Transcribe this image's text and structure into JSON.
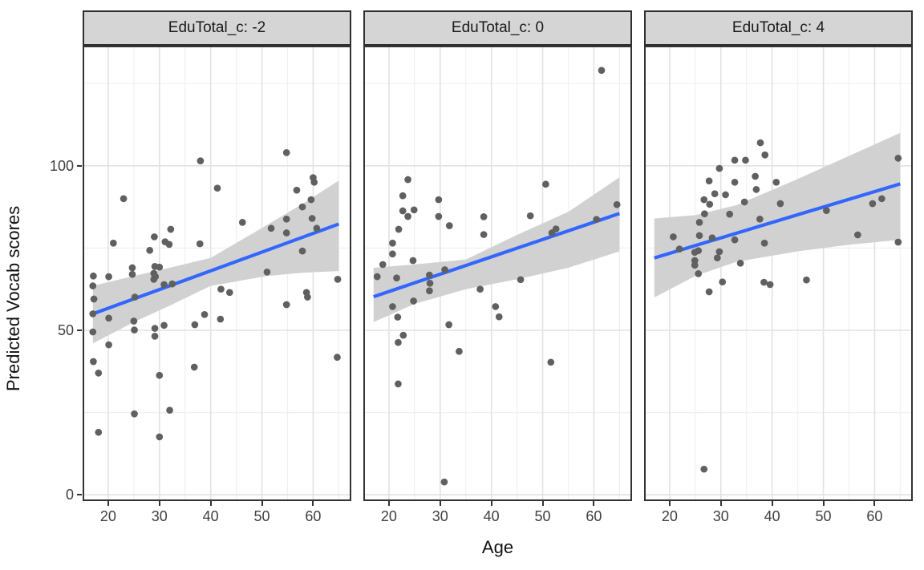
{
  "chart_data": {
    "type": "scatter",
    "title": "",
    "xlabel": "Age",
    "ylabel": "Predicted Vocab scores",
    "legend": "none",
    "grid": true,
    "xlim": [
      15,
      67.45
    ],
    "ylim": [
      -1.9,
      136.5
    ],
    "x_ticks": [
      20,
      30,
      40,
      50,
      60
    ],
    "x_minor_ticks": [
      15,
      25,
      35,
      45,
      55,
      65
    ],
    "y_ticks": [
      0,
      50,
      100
    ],
    "y_minor_ticks": [
      25,
      75,
      125
    ],
    "colors": {
      "line": "#3366FF",
      "point": "#606060",
      "ribbon": "#d1d1d1",
      "strip_bg": "#d5d5d5",
      "grid_major": "#e2e2e2",
      "grid_minor": "#f0f0f0",
      "panel_border": "#333333",
      "tick_text": "#404040",
      "title_text": "#111111"
    },
    "facets": [
      {
        "label": "EduTotal_c: -2",
        "points": [
          [
            17.1,
            66.5
          ],
          [
            17,
            63.5
          ],
          [
            17.2,
            59.5
          ],
          [
            17,
            55
          ],
          [
            17,
            49.5
          ],
          [
            17.1,
            40.5
          ],
          [
            18.1,
            37
          ],
          [
            18.1,
            19
          ],
          [
            20.1,
            66.3
          ],
          [
            20.1,
            53.7
          ],
          [
            20.1,
            45.6
          ],
          [
            21,
            76.5
          ],
          [
            23,
            90
          ],
          [
            24.7,
            69
          ],
          [
            24.7,
            67
          ],
          [
            25.2,
            60.1
          ],
          [
            25,
            52.8
          ],
          [
            25.1,
            50.1
          ],
          [
            25.1,
            24.6
          ],
          [
            28.1,
            74.3
          ],
          [
            29,
            78.4
          ],
          [
            29.1,
            69.4
          ],
          [
            30,
            69.2
          ],
          [
            28.9,
            67.3
          ],
          [
            29.2,
            66.3
          ],
          [
            28.9,
            65.5
          ],
          [
            29.1,
            50.6
          ],
          [
            29.1,
            48.2
          ],
          [
            30.9,
            51.5
          ],
          [
            30,
            36.3
          ],
          [
            30,
            17.6
          ],
          [
            30.9,
            63.9
          ],
          [
            32.5,
            64.1
          ],
          [
            31.1,
            76.9
          ],
          [
            31.9,
            76.1
          ],
          [
            32.2,
            80.7
          ],
          [
            32,
            25.7
          ],
          [
            36.9,
            51.7
          ],
          [
            36.8,
            38.8
          ],
          [
            37.9,
            76.3
          ],
          [
            38,
            101.5
          ],
          [
            38.8,
            54.8
          ],
          [
            41.9,
            53.4
          ],
          [
            41.3,
            93.2
          ],
          [
            42,
            62.5
          ],
          [
            43.7,
            61.5
          ],
          [
            46.2,
            82.8
          ],
          [
            51,
            67.7
          ],
          [
            51.8,
            81
          ],
          [
            54.8,
            104
          ],
          [
            54.8,
            83.8
          ],
          [
            54.8,
            79.6
          ],
          [
            54.8,
            57.8
          ],
          [
            56.8,
            92.6
          ],
          [
            57.9,
            87.5
          ],
          [
            57.9,
            74.1
          ],
          [
            58.7,
            61.5
          ],
          [
            58.9,
            60.1
          ],
          [
            59.6,
            89.7
          ],
          [
            59.8,
            84
          ],
          [
            60,
            96.4
          ],
          [
            60.2,
            95
          ],
          [
            60.7,
            81
          ],
          [
            64.8,
            65.5
          ],
          [
            64.7,
            41.8
          ]
        ],
        "line": {
          "x": [
            17,
            65
          ],
          "y": [
            55,
            82.3
          ]
        },
        "ribbon": {
          "x": [
            17,
            25,
            32,
            40,
            51,
            58,
            65
          ],
          "upper": [
            63.5,
            66.5,
            69,
            72,
            82,
            88.5,
            95.5
          ],
          "lower": [
            46,
            52.5,
            57.5,
            63.5,
            66.5,
            67.5,
            68
          ]
        }
      },
      {
        "label": "EduTotal_c: 0",
        "points": [
          [
            61.5,
            129
          ],
          [
            23.7,
            95.8
          ],
          [
            50.6,
            94.4
          ],
          [
            22.7,
            90.9
          ],
          [
            29.7,
            89.7
          ],
          [
            22.7,
            86.3
          ],
          [
            24.9,
            86.6
          ],
          [
            23.7,
            84.6
          ],
          [
            29.7,
            84.6
          ],
          [
            38.5,
            84.5
          ],
          [
            31.8,
            81.8
          ],
          [
            47.6,
            84.8
          ],
          [
            21.9,
            80.7
          ],
          [
            20.7,
            76.5
          ],
          [
            38.5,
            79.1
          ],
          [
            52.6,
            80.8
          ],
          [
            51.8,
            79.6
          ],
          [
            60.5,
            83.7
          ],
          [
            64.5,
            88.2
          ],
          [
            20.7,
            73.2
          ],
          [
            18.8,
            70
          ],
          [
            24.7,
            71.2
          ],
          [
            30.9,
            68.4
          ],
          [
            17.7,
            66.3
          ],
          [
            21.5,
            65.9
          ],
          [
            27.9,
            66.8
          ],
          [
            28,
            64.3
          ],
          [
            27.9,
            62
          ],
          [
            20.7,
            57.2
          ],
          [
            21.7,
            54
          ],
          [
            24.8,
            58.9
          ],
          [
            37.8,
            62.5
          ],
          [
            45.7,
            65.4
          ],
          [
            40.8,
            57.2
          ],
          [
            41.5,
            54.1
          ],
          [
            31.7,
            51.7
          ],
          [
            22.8,
            48.5
          ],
          [
            21.8,
            46.3
          ],
          [
            33.7,
            43.6
          ],
          [
            51.6,
            40.3
          ],
          [
            21.8,
            33.7
          ],
          [
            30.8,
            3.9
          ]
        ],
        "line": {
          "x": [
            17,
            65
          ],
          "y": [
            60.2,
            85.5
          ]
        },
        "ribbon": {
          "x": [
            17,
            25,
            35,
            45,
            55,
            65
          ],
          "upper": [
            69,
            70,
            71.5,
            79,
            86,
            96.5
          ],
          "lower": [
            52.5,
            58,
            62.5,
            65.5,
            69,
            74
          ]
        }
      },
      {
        "label": "EduTotal_c: 4",
        "points": [
          [
            37.7,
            107
          ],
          [
            38.6,
            103.3
          ],
          [
            32.7,
            101.7
          ],
          [
            34.8,
            101.7
          ],
          [
            64.6,
            102.3
          ],
          [
            29.7,
            99.2
          ],
          [
            27.7,
            95.4
          ],
          [
            32.7,
            95
          ],
          [
            40.8,
            95
          ],
          [
            36.7,
            96.8
          ],
          [
            36.9,
            92.8
          ],
          [
            28.8,
            91.5
          ],
          [
            30.9,
            91.2
          ],
          [
            26.7,
            89.7
          ],
          [
            27.8,
            88.3
          ],
          [
            34.6,
            89
          ],
          [
            26.8,
            85.4
          ],
          [
            31.7,
            85.3
          ],
          [
            41.6,
            88.5
          ],
          [
            59.6,
            88.5
          ],
          [
            61.4,
            90
          ],
          [
            50.6,
            86.4
          ],
          [
            37.6,
            83.8
          ],
          [
            25.8,
            82.8
          ],
          [
            25.8,
            78.8
          ],
          [
            25.6,
            74.2
          ],
          [
            20.7,
            78.4
          ],
          [
            21.9,
            74.7
          ],
          [
            28.3,
            78.1
          ],
          [
            32.7,
            77.5
          ],
          [
            38.5,
            76.5
          ],
          [
            56.7,
            79
          ],
          [
            64.6,
            76.8
          ],
          [
            24.9,
            73.7
          ],
          [
            24.9,
            71.2
          ],
          [
            29.7,
            73.9
          ],
          [
            29.3,
            72
          ],
          [
            24.9,
            69.8
          ],
          [
            33.8,
            70.4
          ],
          [
            25.6,
            67.2
          ],
          [
            30.3,
            64.7
          ],
          [
            38.4,
            64.6
          ],
          [
            39.6,
            63.9
          ],
          [
            46.7,
            65.3
          ],
          [
            27.7,
            61.7
          ],
          [
            26.7,
            7.8
          ]
        ],
        "line": {
          "x": [
            17,
            65
          ],
          "y": [
            72,
            94.5
          ]
        },
        "ribbon": {
          "x": [
            17,
            25,
            33,
            45,
            55,
            65
          ],
          "upper": [
            84,
            85,
            88,
            96,
            103,
            110
          ],
          "lower": [
            60,
            66.5,
            70.8,
            74,
            76,
            77.5
          ]
        }
      }
    ]
  }
}
